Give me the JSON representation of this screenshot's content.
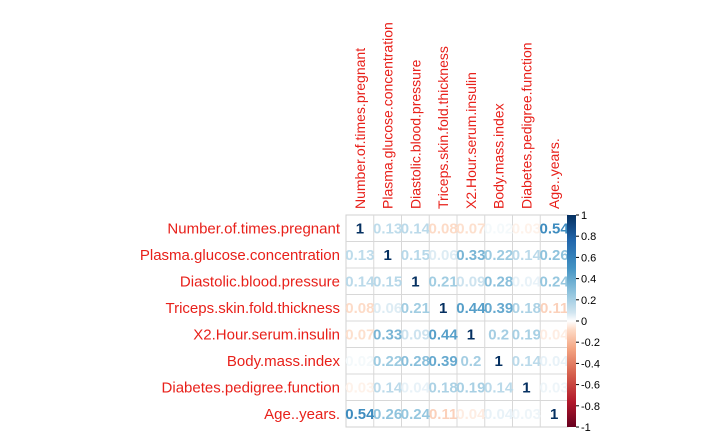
{
  "chart_data": {
    "type": "heatmap",
    "variables": [
      "Number.of.times.pregnant",
      "Plasma.glucose.concentration",
      "Diastolic.blood.pressure",
      "Triceps.skin.fold.thickness",
      "X2.Hour.serum.insulin",
      "Body.mass.index",
      "Diabetes.pedigree.function",
      "Age..years."
    ],
    "matrix": [
      [
        1,
        0.13,
        0.14,
        -0.08,
        -0.07,
        0.02,
        -0.03,
        0.54
      ],
      [
        0.13,
        1,
        0.15,
        0.06,
        0.33,
        0.22,
        0.14,
        0.26
      ],
      [
        0.14,
        0.15,
        1,
        0.21,
        0.09,
        0.28,
        0.04,
        0.24
      ],
      [
        -0.08,
        0.06,
        0.21,
        1,
        0.44,
        0.39,
        0.18,
        -0.11
      ],
      [
        -0.07,
        0.33,
        0.09,
        0.44,
        1,
        0.2,
        0.19,
        -0.04
      ],
      [
        0.02,
        0.22,
        0.28,
        0.39,
        0.2,
        1,
        0.14,
        0.04
      ],
      [
        -0.03,
        0.14,
        0.04,
        0.18,
        0.19,
        0.14,
        1,
        0.03
      ],
      [
        0.54,
        0.26,
        0.24,
        -0.11,
        -0.04,
        0.04,
        0.03,
        1
      ]
    ],
    "labels": [
      [
        "1",
        "0.13",
        "0.14",
        "0.08",
        "0.07",
        "0.02",
        "0.03",
        "0.54"
      ],
      [
        "0.13",
        "1",
        "0.15",
        "0.06",
        "0.33",
        "0.22",
        "0.14",
        "0.26"
      ],
      [
        "0.14",
        "0.15",
        "1",
        "0.21",
        "0.09",
        "0.28",
        "0.04",
        "0.24"
      ],
      [
        "0.08",
        "0.06",
        "0.21",
        "1",
        "0.44",
        "0.39",
        "0.18",
        "0.11"
      ],
      [
        "0.07",
        "0.33",
        "0.09",
        "0.44",
        "1",
        "0.2",
        "0.19",
        "0.04"
      ],
      [
        "0.02",
        "0.22",
        "0.28",
        "0.39",
        "0.2",
        "1",
        "0.14",
        "0.04"
      ],
      [
        "0.03",
        "0.14",
        "0.04",
        "0.18",
        "0.19",
        "0.14",
        "1",
        "0.03"
      ],
      [
        "0.54",
        "0.26",
        "0.24",
        "0.11",
        "0.04",
        "0.04",
        "0.03",
        "1"
      ]
    ],
    "colorbar": {
      "range": [
        -1,
        1
      ],
      "ticks": [
        "1",
        "0.8",
        "0.6",
        "0.4",
        "0.2",
        "0",
        "-0.2",
        "-0.4",
        "-0.6",
        "-0.8",
        "-1"
      ],
      "negative_color": "#67001f",
      "mid_color": "#ffffff",
      "positive_color": "#053061"
    },
    "label_color": "#e8201a",
    "grid": true
  }
}
